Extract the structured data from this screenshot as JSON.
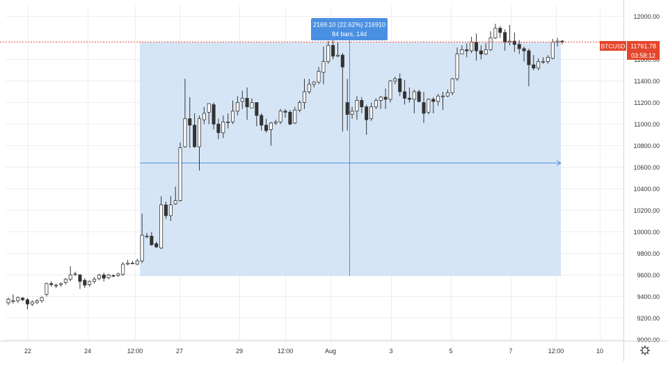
{
  "chart_data": {
    "type": "candlestick",
    "symbol": "BTCUSD",
    "y_axis": {
      "ticks": [
        9000,
        9200,
        9400,
        9600,
        9800,
        10000,
        10200,
        10400,
        10600,
        10800,
        11000,
        11200,
        11400,
        11600,
        12000
      ],
      "tick_labels": [
        "9000.00",
        "9200.00",
        "9400.00",
        "9600.00",
        "9800.00",
        "10000.00",
        "10200.00",
        "10400.00",
        "10600.00",
        "10800.00",
        "11000.00",
        "11200.00",
        "11400.00",
        "11600.00",
        "12000.00"
      ],
      "range": [
        8990,
        12100
      ]
    },
    "x_axis": {
      "labels": [
        "22",
        "24",
        "12:00",
        "27",
        "29",
        "12:00",
        "Aug",
        "3",
        "5",
        "7",
        "12:00",
        "10"
      ],
      "range": [
        0,
        1
      ]
    },
    "last_price": {
      "label": "BTCUSD",
      "value": "11761.78",
      "countdown": "03:58:12",
      "price": 11761.78
    },
    "measure": {
      "line1": "2169.10 (22.62%) 216910",
      "line2": "84 bars, 14d",
      "price_low": 9590,
      "price_high": 11760
    },
    "candles": [
      [
        9340,
        9375,
        9320,
        9390
      ],
      [
        9355,
        9360,
        9335,
        9420
      ],
      [
        9360,
        9390,
        9340,
        9400
      ],
      [
        9385,
        9370,
        9355,
        9395
      ],
      [
        9370,
        9330,
        9280,
        9385
      ],
      [
        9330,
        9350,
        9310,
        9365
      ],
      [
        9345,
        9360,
        9330,
        9375
      ],
      [
        9360,
        9390,
        9340,
        9400
      ],
      [
        9420,
        9520,
        9400,
        9530
      ],
      [
        9520,
        9510,
        9490,
        9540
      ],
      [
        9505,
        9505,
        9480,
        9520
      ],
      [
        9510,
        9520,
        9490,
        9530
      ],
      [
        9530,
        9560,
        9510,
        9570
      ],
      [
        9560,
        9600,
        9540,
        9680
      ],
      [
        9610,
        9610,
        9590,
        9630
      ],
      [
        9600,
        9540,
        9470,
        9610
      ],
      [
        9550,
        9505,
        9480,
        9570
      ],
      [
        9510,
        9540,
        9490,
        9550
      ],
      [
        9540,
        9560,
        9520,
        9580
      ],
      [
        9565,
        9600,
        9550,
        9610
      ],
      [
        9600,
        9570,
        9540,
        9620
      ],
      [
        9575,
        9600,
        9560,
        9610
      ],
      [
        9595,
        9590,
        9580,
        9605
      ],
      [
        9595,
        9610,
        9580,
        9620
      ],
      [
        9605,
        9700,
        9590,
        9720
      ],
      [
        9700,
        9710,
        9690,
        9740
      ],
      [
        9710,
        9710,
        9700,
        9730
      ],
      [
        9700,
        9730,
        9690,
        9750
      ],
      [
        9730,
        9970,
        9710,
        10170
      ],
      [
        9960,
        9960,
        9940,
        9990
      ],
      [
        9960,
        9880,
        9870,
        10000
      ],
      [
        9890,
        9860,
        9850,
        9910
      ],
      [
        9850,
        10250,
        9840,
        10330
      ],
      [
        10250,
        10150,
        10120,
        10280
      ],
      [
        10150,
        10250,
        10100,
        10330
      ],
      [
        10260,
        10290,
        10250,
        10420
      ],
      [
        10290,
        10780,
        10280,
        10830
      ],
      [
        10790,
        11050,
        10780,
        11420
      ],
      [
        11050,
        10990,
        10780,
        11250
      ],
      [
        10990,
        10790,
        10780,
        11100
      ],
      [
        10790,
        11050,
        10570,
        11080
      ],
      [
        11040,
        11100,
        11000,
        11160
      ],
      [
        11110,
        11190,
        11000,
        11190
      ],
      [
        11180,
        11000,
        10950,
        11200
      ],
      [
        11000,
        10920,
        10860,
        11050
      ],
      [
        10920,
        11020,
        10870,
        11080
      ],
      [
        11020,
        11020,
        10960,
        11100
      ],
      [
        11020,
        11120,
        11000,
        11220
      ],
      [
        11120,
        11200,
        11080,
        11260
      ],
      [
        11210,
        11240,
        11140,
        11310
      ],
      [
        11240,
        11160,
        11040,
        11340
      ],
      [
        11150,
        11200,
        11150,
        11240
      ],
      [
        11200,
        11080,
        10980,
        11200
      ],
      [
        11080,
        10990,
        10940,
        11100
      ],
      [
        10990,
        10940,
        10920,
        11050
      ],
      [
        10950,
        11010,
        10800,
        11020
      ],
      [
        11010,
        11020,
        10990,
        11040
      ],
      [
        11020,
        11120,
        11000,
        11140
      ],
      [
        11120,
        11110,
        11060,
        11140
      ],
      [
        11110,
        11000,
        10990,
        11130
      ],
      [
        11010,
        11130,
        11000,
        11160
      ],
      [
        11130,
        11200,
        11110,
        11220
      ],
      [
        11200,
        11300,
        11140,
        11420
      ],
      [
        11300,
        11370,
        11280,
        11420
      ],
      [
        11370,
        11390,
        11340,
        11400
      ],
      [
        11390,
        11490,
        11370,
        11530
      ],
      [
        11480,
        11580,
        11370,
        11720
      ],
      [
        11580,
        11730,
        11560,
        11770
      ],
      [
        11730,
        11630,
        11600,
        11800
      ],
      [
        11630,
        11640,
        11620,
        11760
      ],
      [
        11640,
        11530,
        10930,
        11660
      ],
      [
        11200,
        11090,
        10940,
        11420
      ],
      [
        11090,
        11120,
        11050,
        11160
      ],
      [
        11120,
        11220,
        11040,
        11260
      ],
      [
        11220,
        11160,
        11100,
        11250
      ],
      [
        11160,
        11040,
        10900,
        11180
      ],
      [
        11050,
        11160,
        11030,
        11200
      ],
      [
        11160,
        11220,
        11140,
        11240
      ],
      [
        11220,
        11250,
        11140,
        11260
      ],
      [
        11250,
        11230,
        11140,
        11330
      ],
      [
        11230,
        11400,
        11200,
        11410
      ],
      [
        11400,
        11420,
        11370,
        11440
      ],
      [
        11420,
        11300,
        11260,
        11470
      ],
      [
        11300,
        11240,
        11180,
        11410
      ],
      [
        11240,
        11230,
        11200,
        11340
      ],
      [
        11230,
        11300,
        11100,
        11320
      ],
      [
        11300,
        11210,
        11200,
        11320
      ],
      [
        11200,
        11100,
        11010,
        11300
      ],
      [
        11110,
        11230,
        11090,
        11240
      ],
      [
        11230,
        11210,
        11100,
        11250
      ],
      [
        11210,
        11260,
        11170,
        11280
      ],
      [
        11260,
        11260,
        11130,
        11300
      ],
      [
        11260,
        11290,
        11250,
        11320
      ],
      [
        11290,
        11420,
        11270,
        11430
      ],
      [
        11420,
        11650,
        11400,
        11710
      ],
      [
        11650,
        11690,
        11650,
        11730
      ],
      [
        11690,
        11680,
        11620,
        11750
      ],
      [
        11680,
        11760,
        11660,
        11810
      ],
      [
        11760,
        11680,
        11590,
        11840
      ],
      [
        11680,
        11650,
        11600,
        11730
      ],
      [
        11650,
        11690,
        11640,
        11750
      ],
      [
        11690,
        11800,
        11680,
        11860
      ],
      [
        11800,
        11890,
        11790,
        11930
      ],
      [
        11890,
        11850,
        11800,
        11910
      ],
      [
        11850,
        11760,
        11680,
        11880
      ],
      [
        11760,
        11770,
        11730,
        11920
      ],
      [
        11770,
        11740,
        11670,
        11850
      ],
      [
        11740,
        11700,
        11650,
        11780
      ],
      [
        11700,
        11680,
        11580,
        11720
      ],
      [
        11680,
        11550,
        11350,
        11700
      ],
      [
        11550,
        11520,
        11500,
        11640
      ],
      [
        11520,
        11580,
        11500,
        11610
      ],
      [
        11580,
        11580,
        11560,
        11620
      ],
      [
        11580,
        11620,
        11560,
        11640
      ],
      [
        11610,
        11760,
        11600,
        11790
      ],
      [
        11760,
        11770,
        11720,
        11800
      ],
      [
        11770,
        11762,
        11740,
        11780
      ]
    ]
  }
}
